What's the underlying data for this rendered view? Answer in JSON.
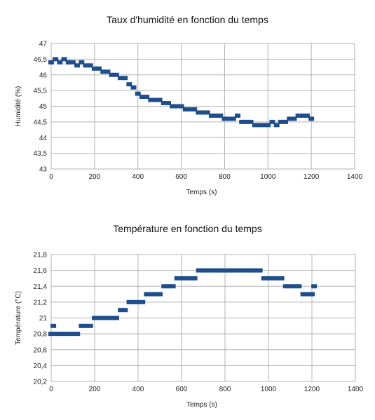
{
  "chart_data": [
    {
      "type": "scatter",
      "title": "Taux d'humidité en fonction du temps",
      "xlabel": "Temps (s)",
      "ylabel": "Humidité (%)",
      "xlim": [
        0,
        1400
      ],
      "ylim": [
        43,
        47
      ],
      "xticks": [
        0,
        200,
        400,
        600,
        800,
        1000,
        1200,
        1400
      ],
      "xtick_labels": [
        "0",
        "200",
        "400",
        "600",
        "800",
        "1000",
        "1200",
        "1400"
      ],
      "yticks": [
        43,
        43.5,
        44,
        44.5,
        45,
        45.5,
        46,
        46.5,
        47
      ],
      "ytick_labels": [
        "43",
        "43,5",
        "44",
        "44,5",
        "45",
        "45,5",
        "46",
        "46,5",
        "47"
      ],
      "grid": true,
      "series_color": "#1f4e8c",
      "x": [
        0,
        20,
        40,
        60,
        80,
        100,
        120,
        140,
        160,
        180,
        200,
        220,
        240,
        260,
        280,
        300,
        320,
        340,
        360,
        380,
        400,
        420,
        440,
        460,
        480,
        500,
        520,
        540,
        560,
        580,
        600,
        620,
        640,
        660,
        680,
        700,
        720,
        740,
        760,
        780,
        800,
        820,
        840,
        860,
        880,
        900,
        920,
        940,
        960,
        980,
        1000,
        1020,
        1040,
        1060,
        1080,
        1100,
        1120,
        1140,
        1160,
        1180,
        1200
      ],
      "y": [
        46.4,
        46.5,
        46.4,
        46.5,
        46.4,
        46.4,
        46.3,
        46.4,
        46.3,
        46.3,
        46.2,
        46.2,
        46.1,
        46.1,
        46.0,
        46.0,
        45.9,
        45.9,
        45.7,
        45.6,
        45.4,
        45.3,
        45.3,
        45.2,
        45.2,
        45.2,
        45.1,
        45.1,
        45.0,
        45.0,
        45.0,
        44.9,
        44.9,
        44.9,
        44.8,
        44.8,
        44.8,
        44.7,
        44.7,
        44.7,
        44.6,
        44.6,
        44.6,
        44.7,
        44.5,
        44.5,
        44.5,
        44.4,
        44.4,
        44.4,
        44.4,
        44.5,
        44.4,
        44.5,
        44.5,
        44.6,
        44.6,
        44.7,
        44.7,
        44.7,
        44.6
      ]
    },
    {
      "type": "scatter",
      "title": "Température en fonction du temps",
      "xlabel": "Temps (s)",
      "ylabel": "Température (°C)",
      "xlim": [
        0,
        1400
      ],
      "ylim": [
        20.2,
        21.8
      ],
      "xticks": [
        0,
        200,
        400,
        600,
        800,
        1000,
        1200,
        1400
      ],
      "xtick_labels": [
        "0",
        "200",
        "400",
        "600",
        "800",
        "1000",
        "1200",
        "1400"
      ],
      "yticks": [
        20.2,
        20.4,
        20.6,
        20.8,
        21,
        21.2,
        21.4,
        21.6,
        21.8
      ],
      "ytick_labels": [
        "20,2",
        "20,4",
        "20,6",
        "20,8",
        "21",
        "21,2",
        "21,4",
        "21,6",
        "21,8"
      ],
      "grid": true,
      "series_color": "#1f4e8c",
      "x": [
        0,
        10,
        20,
        40,
        60,
        80,
        100,
        120,
        140,
        160,
        180,
        200,
        220,
        240,
        260,
        280,
        300,
        320,
        340,
        360,
        380,
        400,
        420,
        440,
        460,
        480,
        500,
        520,
        540,
        560,
        580,
        600,
        620,
        640,
        660,
        680,
        700,
        720,
        740,
        760,
        780,
        800,
        820,
        840,
        860,
        880,
        900,
        920,
        940,
        960,
        980,
        1000,
        1020,
        1040,
        1060,
        1080,
        1100,
        1120,
        1140,
        1160,
        1180,
        1200,
        1210
      ],
      "y": [
        20.8,
        20.9,
        20.8,
        20.8,
        20.8,
        20.8,
        20.8,
        20.8,
        20.9,
        20.9,
        20.9,
        21.0,
        21.0,
        21.0,
        21.0,
        21.0,
        21.0,
        21.1,
        21.1,
        21.2,
        21.2,
        21.2,
        21.2,
        21.3,
        21.3,
        21.3,
        21.3,
        21.4,
        21.4,
        21.4,
        21.5,
        21.5,
        21.5,
        21.5,
        21.5,
        21.6,
        21.6,
        21.6,
        21.6,
        21.6,
        21.6,
        21.6,
        21.6,
        21.6,
        21.6,
        21.6,
        21.6,
        21.6,
        21.6,
        21.6,
        21.5,
        21.5,
        21.5,
        21.5,
        21.5,
        21.4,
        21.4,
        21.4,
        21.4,
        21.3,
        21.3,
        21.3,
        21.4
      ]
    }
  ]
}
